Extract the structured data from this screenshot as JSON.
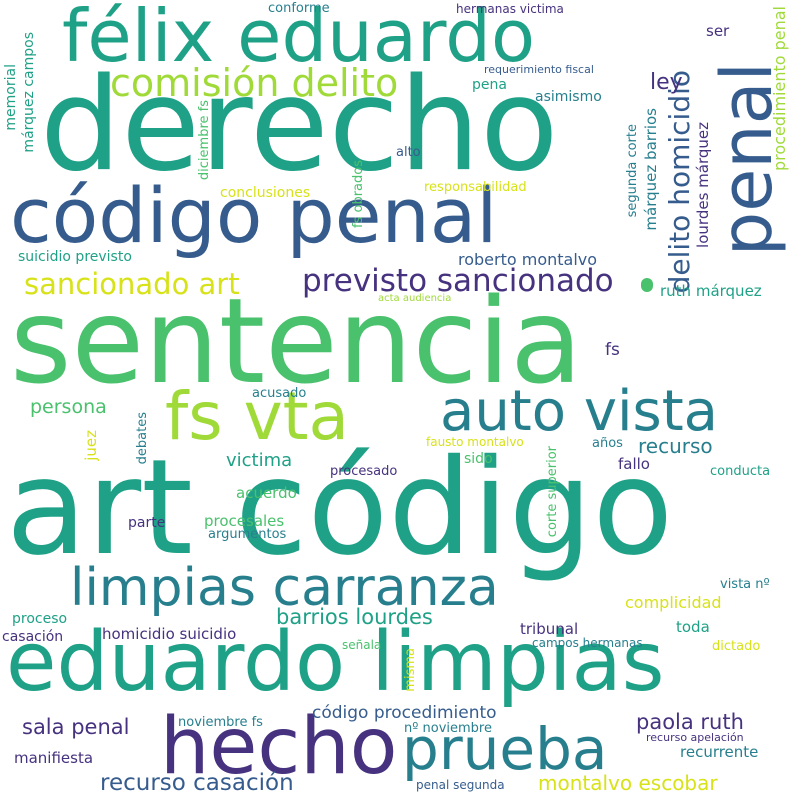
{
  "palette": {
    "dark_purple": "#46327e",
    "indigo": "#365c8d",
    "blue": "#277f8e",
    "teal": "#1fa187",
    "green": "#4ac16d",
    "lime": "#a0da39",
    "yellow": "#d8e219"
  },
  "words": [
    "sentencia",
    "art código",
    "derecho",
    "eduardo limpias",
    "código penal",
    "félix eduardo",
    "hecho",
    "penal",
    "fs vta",
    "auto vista",
    "limpias carranza",
    "prueba",
    "comisión delito",
    "previsto sancionado",
    "sancionado art",
    "delito homicidio",
    "procedimiento penal",
    "recurso casación",
    "sala penal",
    "paola ruth",
    "montalvo escobar",
    "barrios lourdes",
    "código procedimiento",
    "victima",
    "recurso",
    "persona",
    "ley",
    "roberto montalvo",
    "ruth márquez",
    "fs",
    "acuerdo",
    "procesales",
    "fallo",
    "tribunal",
    "toda",
    "complicidad",
    "homicidio suicidio",
    "manifiesta",
    "recurrente",
    "proceso",
    "asimismo",
    "ser",
    "pena",
    "márquez barrios",
    "lourdes márquez",
    "conclusiones",
    "responsabilidad",
    "suicidio previsto",
    "memorial",
    "márquez campos",
    "diciembre fs",
    "fs obrados",
    "segunda corte",
    "corte superior",
    "juez",
    "debates",
    "acusado",
    "procesado",
    "sido",
    "años",
    "conducta",
    "parte",
    "argumentos",
    "fausto montalvo",
    "casación",
    "señala",
    "misma",
    "campos hermanas",
    "dictado",
    "vista nº",
    "noviembre fs",
    "nº noviembre",
    "recurso apelación",
    "penal segunda",
    "conforme",
    "hermanas victima",
    "requerimiento fiscal",
    "alto",
    "acta audiencia"
  ]
}
